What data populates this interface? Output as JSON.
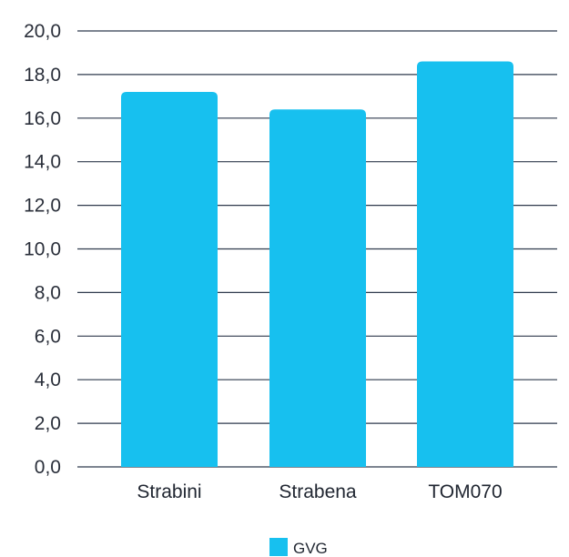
{
  "chart_data": {
    "type": "bar",
    "categories": [
      "Strabini",
      "Strabena",
      "TOM070"
    ],
    "series": [
      {
        "name": "GVG",
        "values": [
          17.2,
          16.4,
          18.6
        ]
      }
    ],
    "ylim": [
      0,
      20
    ],
    "yticks": [
      0,
      2,
      4,
      6,
      8,
      10,
      12,
      14,
      16,
      18,
      20
    ],
    "ytick_labels": [
      "0,0",
      "2,0",
      "4,0",
      "6,0",
      "8,0",
      "10,0",
      "12,0",
      "14,0",
      "16,0",
      "18,0",
      "20,0"
    ],
    "grid": true,
    "legend_position": "bottom",
    "colors": {
      "bar": "#17c0ef",
      "grid": "#2f3a4d",
      "text": "#2a2f3a"
    }
  }
}
